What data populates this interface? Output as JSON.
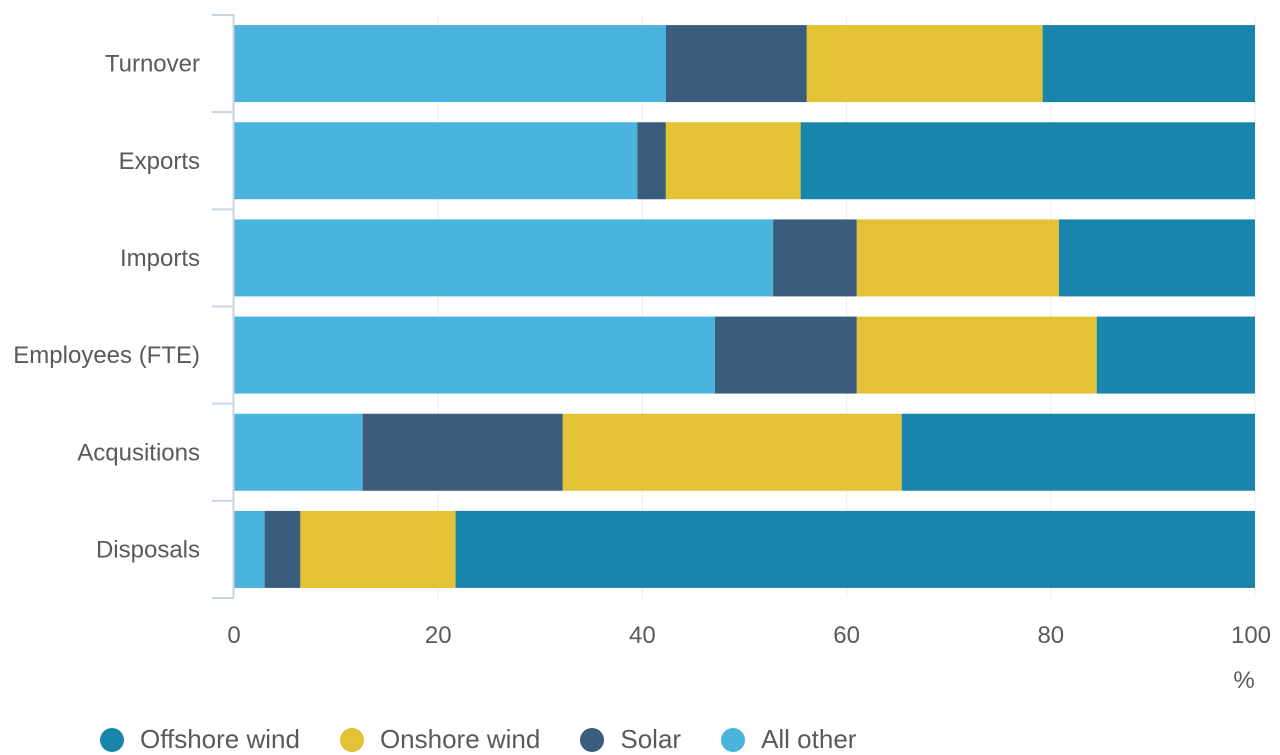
{
  "chart_data": {
    "type": "bar",
    "orientation": "horizontal",
    "stacked": true,
    "categories": [
      "Turnover",
      "Exports",
      "Imports",
      "Employees (FTE)",
      "Acqusitions",
      "Disposals"
    ],
    "series": [
      {
        "name": "All other",
        "color": "#4ab4de",
        "values": [
          42.3,
          39.5,
          52.8,
          47.1,
          12.6,
          3.0
        ]
      },
      {
        "name": "Solar",
        "color": "#3a5c7d",
        "values": [
          13.8,
          2.8,
          8.2,
          13.9,
          19.6,
          3.5
        ]
      },
      {
        "name": "Onshore wind",
        "color": "#e3c235",
        "values": [
          23.1,
          13.2,
          19.8,
          23.5,
          33.2,
          15.2
        ]
      },
      {
        "name": "Offshore wind",
        "color": "#1a85ac",
        "values": [
          20.8,
          44.5,
          19.2,
          15.5,
          34.6,
          78.3
        ]
      }
    ],
    "x_ticks": [
      "0",
      "20",
      "40",
      "60",
      "80",
      "100"
    ],
    "xlim": [
      0,
      100
    ],
    "x_unit_label": "%",
    "grid": true,
    "legend_position": "bottom-left",
    "legend_order": [
      "Offshore wind",
      "Onshore wind",
      "Solar",
      "All other"
    ]
  }
}
